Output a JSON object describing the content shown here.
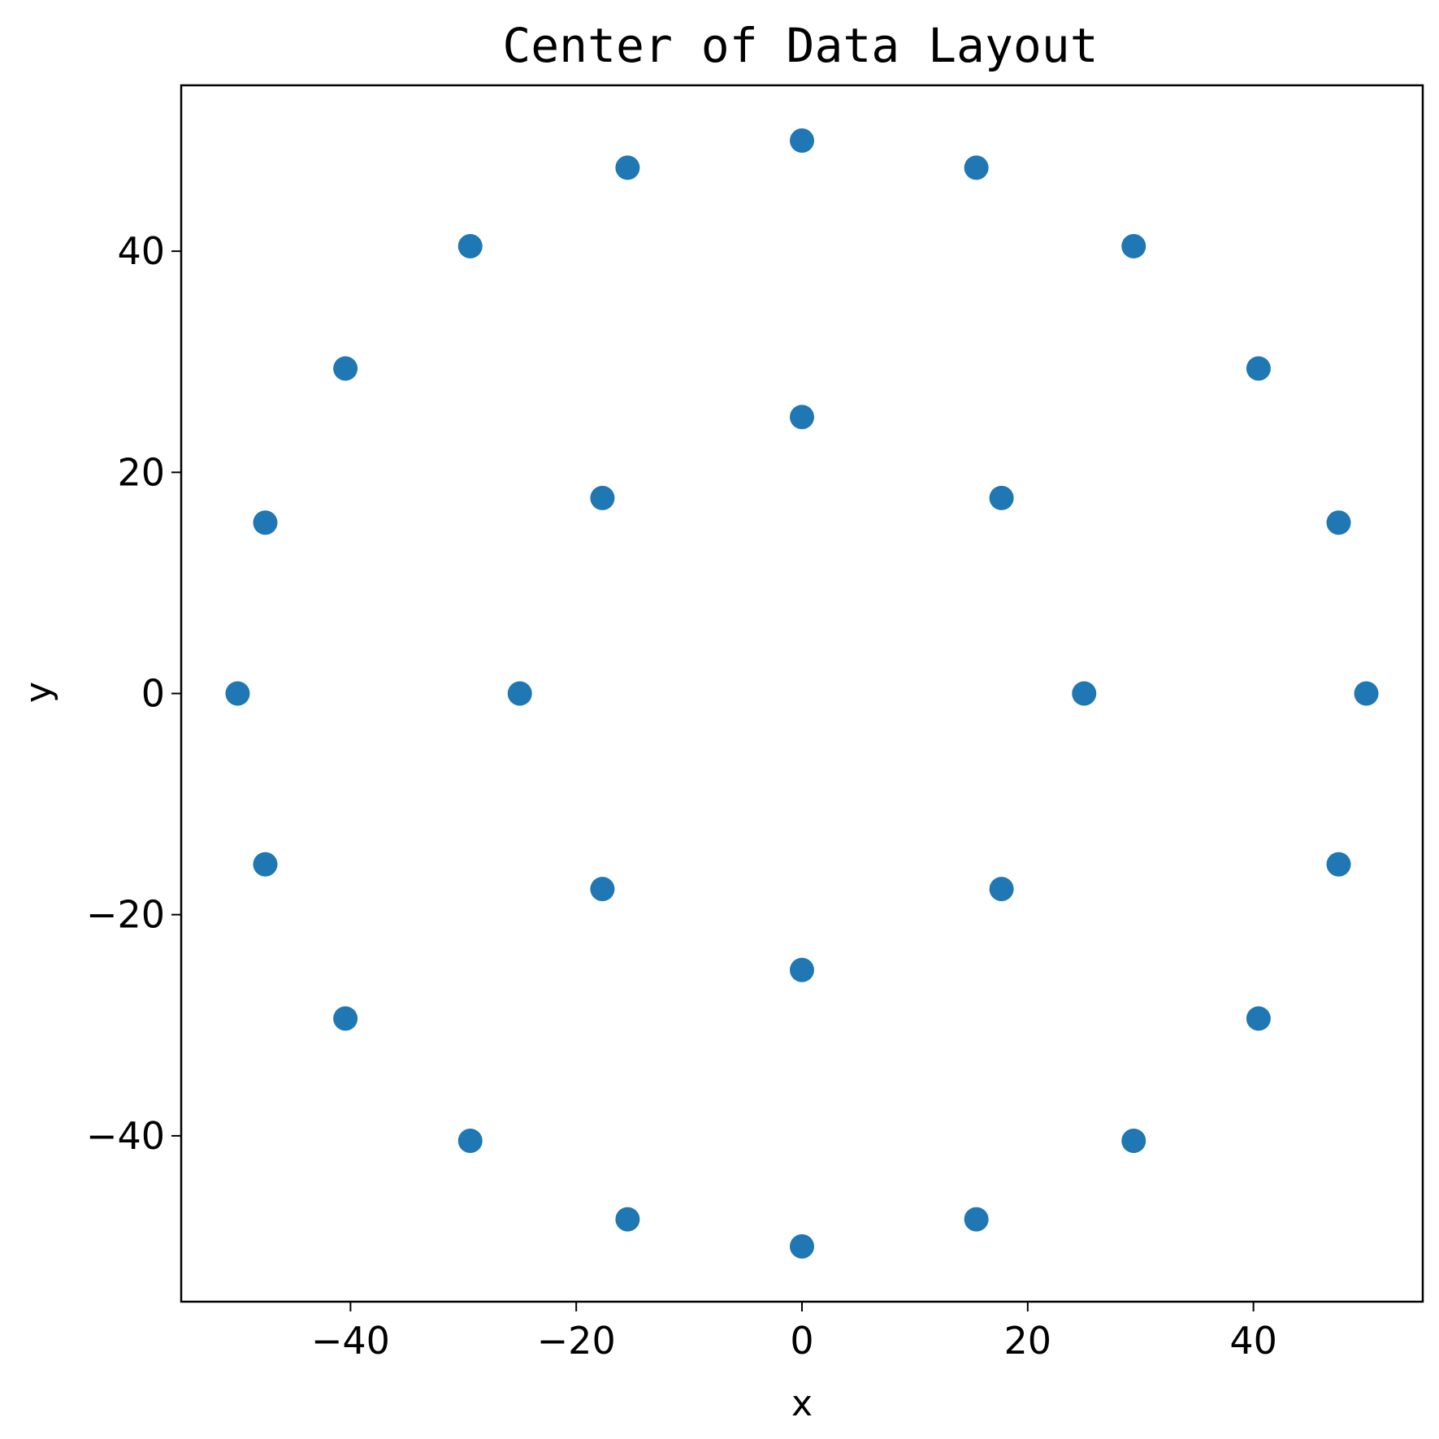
{
  "chart_data": {
    "type": "scatter",
    "title": "Center of Data Layout",
    "xlabel": "x",
    "ylabel": "y",
    "xlim": [
      -55,
      55
    ],
    "ylim": [
      -55,
      55
    ],
    "xticks": [
      -40,
      -20,
      0,
      20,
      40
    ],
    "yticks": [
      -40,
      -20,
      0,
      20,
      40
    ],
    "xtick_labels": [
      "−40",
      "−20",
      "0",
      "20",
      "40"
    ],
    "ytick_labels": [
      "−40",
      "−20",
      "0",
      "20",
      "40"
    ],
    "grid": false,
    "marker_color": "#1f77b4",
    "series": [
      {
        "points": [
          {
            "x": 50,
            "y": 0
          },
          {
            "x": 47.55,
            "y": 15.45
          },
          {
            "x": 40.45,
            "y": 29.39
          },
          {
            "x": 29.39,
            "y": 40.45
          },
          {
            "x": 15.45,
            "y": 47.55
          },
          {
            "x": 0,
            "y": 50
          },
          {
            "x": -15.45,
            "y": 47.55
          },
          {
            "x": -29.39,
            "y": 40.45
          },
          {
            "x": -40.45,
            "y": 29.39
          },
          {
            "x": -47.55,
            "y": 15.45
          },
          {
            "x": -50,
            "y": 0
          },
          {
            "x": -47.55,
            "y": -15.45
          },
          {
            "x": -40.45,
            "y": -29.39
          },
          {
            "x": -29.39,
            "y": -40.45
          },
          {
            "x": -15.45,
            "y": -47.55
          },
          {
            "x": 0,
            "y": -50
          },
          {
            "x": 15.45,
            "y": -47.55
          },
          {
            "x": 29.39,
            "y": -40.45
          },
          {
            "x": 40.45,
            "y": -29.39
          },
          {
            "x": 47.55,
            "y": -15.45
          },
          {
            "x": 25,
            "y": 0
          },
          {
            "x": 17.68,
            "y": 17.68
          },
          {
            "x": 0,
            "y": 25
          },
          {
            "x": -17.68,
            "y": 17.68
          },
          {
            "x": -25,
            "y": 0
          },
          {
            "x": -17.68,
            "y": -17.68
          },
          {
            "x": 0,
            "y": -25
          },
          {
            "x": 17.68,
            "y": -17.68
          }
        ]
      }
    ]
  }
}
